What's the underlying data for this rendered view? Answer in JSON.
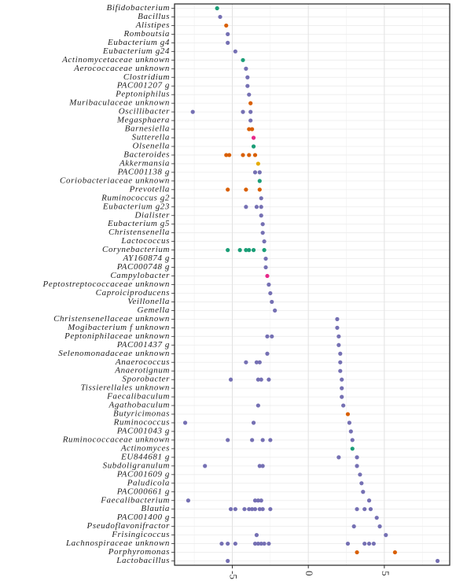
{
  "chart_data": {
    "type": "dotplot",
    "categories": [
      "Bifidobacterium",
      "Bacillus",
      "Alistipes",
      "Romboutsia",
      "Eubacterium g4",
      "Eubacterium g24",
      "Actinomycetaceae unknown",
      "Aerococcaceae unknown",
      "Clostridium",
      "PAC001207 g",
      "Peptoniphilus",
      "Muribaculaceae unknown",
      "Oscillibacter",
      "Megasphaera",
      "Barnesiella",
      "Sutterella",
      "Olsenella",
      "Bacteroides",
      "Akkermansia",
      "PAC001138 g",
      "Coriobacteriaceae unknown",
      "Prevotella",
      "Ruminococcus g2",
      "Eubacterium g23",
      "Dialister",
      "Eubacterium g5",
      "Christensenella",
      "Lactococcus",
      "Corynebacterium",
      "AY160874 g",
      "PAC000748 g",
      "Campylobacter",
      "Peptostreptococcaceae unknown",
      "Caproiciproducens",
      "Veillonella",
      "Gemella",
      "Christensenellaceae unknown",
      "Mogibacterium f unknown",
      "Peptoniphilaceae unknown",
      "PAC001437 g",
      "Selenomonadaceae unknown",
      "Anaerococcus",
      "Anaerotignum",
      "Sporobacter",
      "Tissierellales unknown",
      "Faecalibaculum",
      "Agathobaculum",
      "Butyricimonas",
      "Ruminococcus",
      "PAC001043 g",
      "Ruminococcaceae unknown",
      "Actinomyces",
      "EU844681 g",
      "Subdoligranulum",
      "PAC001609 g",
      "Paludicola",
      "PAC000661 g",
      "Faecalibacterium",
      "Blautia",
      "PAC001400 g",
      "Pseudoflavonifractor",
      "Frisingicoccus",
      "Lachnospiraceae unknown",
      "Porphyromonas",
      "Lactobacillus"
    ],
    "values": [
      [
        -6.0
      ],
      [
        -5.8
      ],
      [
        -5.4
      ],
      [
        -5.3
      ],
      [
        -5.3
      ],
      [
        -4.8
      ],
      [
        -4.3
      ],
      [
        -4.1
      ],
      [
        -4.0
      ],
      [
        -4.0
      ],
      [
        -3.9
      ],
      [
        -3.8
      ],
      [
        -7.6,
        -4.3,
        -3.8
      ],
      [
        -3.8
      ],
      [
        -3.9,
        -3.7
      ],
      [
        -3.6
      ],
      [
        -3.6
      ],
      [
        -5.4,
        -5.2,
        -4.3,
        -3.9,
        -3.5
      ],
      [
        -3.3
      ],
      [
        -3.5,
        -3.2
      ],
      [
        -3.2
      ],
      [
        -5.3,
        -4.1,
        -3.2
      ],
      [
        -3.1
      ],
      [
        -4.1,
        -3.4,
        -3.1
      ],
      [
        -3.1
      ],
      [
        -3.0
      ],
      [
        -3.0
      ],
      [
        -2.9
      ],
      [
        -5.3,
        -4.5,
        -4.1,
        -3.9,
        -3.6,
        -2.9
      ],
      [
        -2.8
      ],
      [
        -2.8
      ],
      [
        -2.7
      ],
      [
        -2.6
      ],
      [
        -2.5
      ],
      [
        -2.4
      ],
      [
        -2.2
      ],
      [
        1.9
      ],
      [
        1.9
      ],
      [
        -2.7,
        -2.4,
        2.0
      ],
      [
        2.0
      ],
      [
        -2.7,
        2.1
      ],
      [
        -4.1,
        -3.4,
        -3.2,
        2.1
      ],
      [
        2.1
      ],
      [
        -5.1,
        -3.3,
        -3.1,
        -2.6,
        2.2
      ],
      [
        2.2
      ],
      [
        2.2
      ],
      [
        -3.3,
        2.3
      ],
      [
        2.6
      ],
      [
        -8.1,
        -3.6,
        2.7
      ],
      [
        2.8
      ],
      [
        -5.3,
        -3.7,
        -3.0,
        -2.5,
        2.9
      ],
      [
        2.9
      ],
      [
        2.0,
        3.2
      ],
      [
        -6.8,
        -3.2,
        -3.0,
        3.2
      ],
      [
        3.4
      ],
      [
        3.5
      ],
      [
        3.6
      ],
      [
        -7.9,
        -3.5,
        -3.3,
        -3.1,
        4.0
      ],
      [
        -5.1,
        -4.8,
        -4.2,
        -3.9,
        -3.7,
        -3.5,
        -3.2,
        -3.0,
        -2.5,
        3.2,
        3.7,
        4.1
      ],
      [
        4.5
      ],
      [
        3.0,
        4.7
      ],
      [
        -3.4,
        5.1
      ],
      [
        -5.7,
        -5.3,
        -4.8,
        -3.5,
        -3.3,
        -3.1,
        -2.9,
        -2.6,
        2.6,
        3.7,
        4.0,
        4.3
      ],
      [
        3.2,
        5.7
      ],
      [
        -5.3,
        8.5
      ]
    ],
    "colors": [
      "#1b9e77",
      "#7570b3",
      "#d95f02",
      "#7570b3",
      "#7570b3",
      "#7570b3",
      "#1b9e77",
      "#7570b3",
      "#7570b3",
      "#7570b3",
      "#7570b3",
      "#d95f02",
      "#7570b3",
      "#7570b3",
      "#d95f02",
      "#e7298a",
      "#1b9e77",
      "#d95f02",
      "#e6ab02",
      "#7570b3",
      "#1b9e77",
      "#d95f02",
      "#7570b3",
      "#7570b3",
      "#7570b3",
      "#7570b3",
      "#7570b3",
      "#7570b3",
      "#1b9e77",
      "#7570b3",
      "#7570b3",
      "#e7298a",
      "#7570b3",
      "#7570b3",
      "#7570b3",
      "#7570b3",
      "#7570b3",
      "#7570b3",
      "#7570b3",
      "#7570b3",
      "#7570b3",
      "#7570b3",
      "#7570b3",
      "#7570b3",
      "#7570b3",
      "#7570b3",
      "#7570b3",
      "#d95f02",
      "#7570b3",
      "#7570b3",
      "#7570b3",
      "#1b9e77",
      "#7570b3",
      "#7570b3",
      "#7570b3",
      "#7570b3",
      "#7570b3",
      "#7570b3",
      "#7570b3",
      "#7570b3",
      "#7570b3",
      "#7570b3",
      "#7570b3",
      "#d95f02",
      "#7570b3"
    ],
    "xlim": [
      -8.8,
      9.3
    ],
    "xticks": [
      -5,
      0,
      5
    ],
    "grid": true
  }
}
